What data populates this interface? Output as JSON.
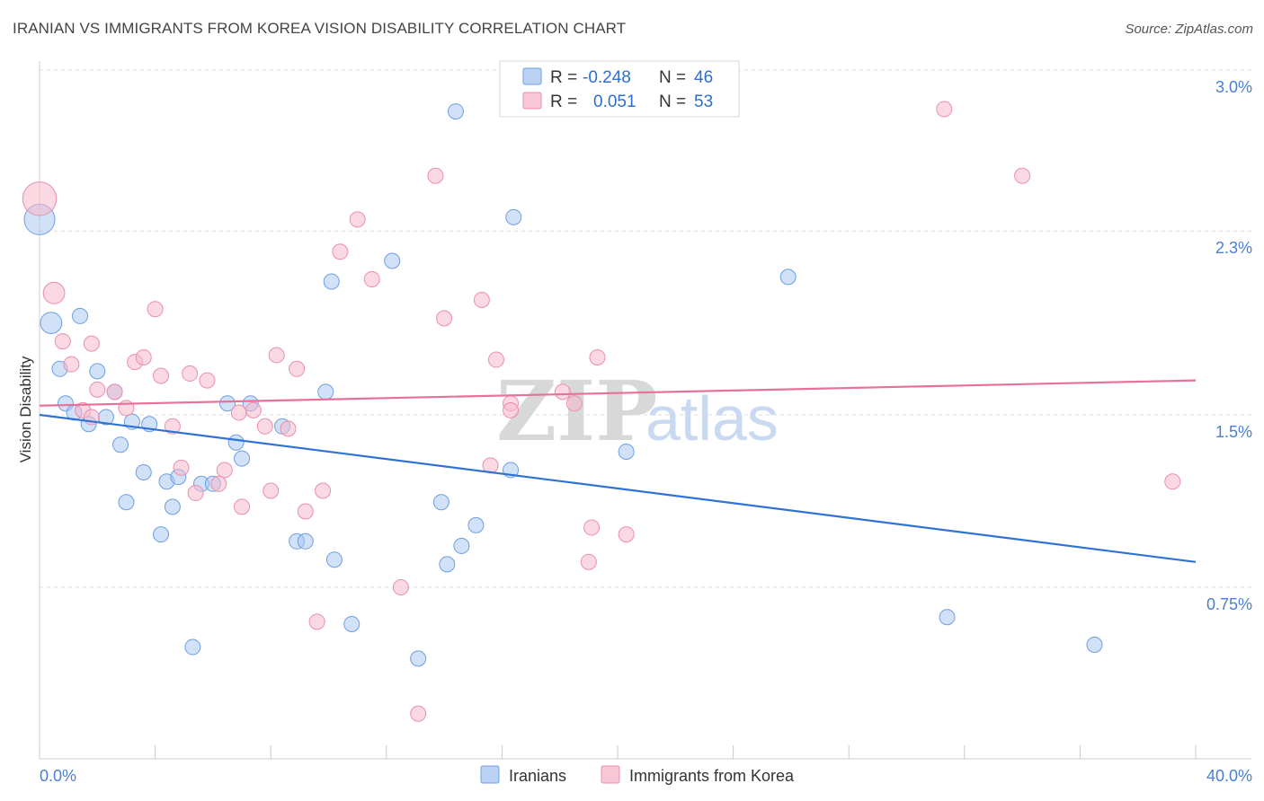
{
  "header": {
    "title": "IRANIAN VS IMMIGRANTS FROM KOREA VISION DISABILITY CORRELATION CHART",
    "source": "Source: ZipAtlas.com"
  },
  "watermark": {
    "zip": "ZIP",
    "atlas": "atlas"
  },
  "legend": {
    "rows": [
      {
        "r_label": "R =",
        "r_value": "-0.248",
        "n_label": "N =",
        "n_value": "46",
        "color": "#a9c8f2"
      },
      {
        "r_label": "R =",
        "r_value": "0.051",
        "n_label": "N =",
        "n_value": "53",
        "color": "#f5b9cc"
      }
    ]
  },
  "bottom_legend": [
    {
      "label": "Iranians",
      "color": "#a9c8f2"
    },
    {
      "label": "Immigrants from Korea",
      "color": "#f5b9cc"
    }
  ],
  "chart_data": {
    "type": "scatter",
    "title": "IRANIAN VS IMMIGRANTS FROM KOREA VISION DISABILITY CORRELATION CHART",
    "xlabel": "",
    "ylabel": "Vision Disability",
    "xlim": [
      0,
      40
    ],
    "ylim": [
      0.0,
      3.1
    ],
    "x_unit": "%",
    "y_unit": "%",
    "x_tick_labels": [
      "0.0%",
      "40.0%"
    ],
    "y_ticks": [
      0.75,
      1.5,
      2.3,
      3.0
    ],
    "y_tick_labels": [
      "0.75%",
      "1.5%",
      "2.3%",
      "3.0%"
    ],
    "grid": true,
    "legend_position": "top-center",
    "series": [
      {
        "name": "Iranians",
        "color": "#a9c8f2",
        "edge": "#6f9fe0",
        "trend_color": "#2f72d6",
        "trend": {
          "x": [
            0,
            40
          ],
          "y": [
            1.5,
            0.86
          ]
        },
        "points": [
          [
            0.0,
            2.35,
            2.0
          ],
          [
            0.4,
            1.9,
            1.4
          ],
          [
            0.7,
            1.7,
            1.0
          ],
          [
            1.4,
            1.93,
            1.0
          ],
          [
            0.9,
            1.55,
            1.0
          ],
          [
            1.2,
            1.51,
            1.0
          ],
          [
            1.7,
            1.46,
            1.0
          ],
          [
            2.0,
            1.69,
            1.0
          ],
          [
            2.6,
            1.6,
            1.0
          ],
          [
            2.3,
            1.49,
            1.0
          ],
          [
            3.2,
            1.47,
            1.0
          ],
          [
            2.8,
            1.37,
            1.0
          ],
          [
            3.8,
            1.46,
            1.0
          ],
          [
            3.6,
            1.25,
            1.0
          ],
          [
            3.0,
            1.12,
            1.0
          ],
          [
            4.4,
            1.21,
            1.0
          ],
          [
            4.8,
            1.23,
            1.0
          ],
          [
            5.6,
            1.2,
            1.0
          ],
          [
            6.0,
            1.2,
            1.0
          ],
          [
            4.6,
            1.1,
            1.0
          ],
          [
            4.2,
            0.98,
            1.0
          ],
          [
            6.5,
            1.55,
            1.0
          ],
          [
            7.3,
            1.55,
            1.0
          ],
          [
            6.8,
            1.38,
            1.0
          ],
          [
            7.0,
            1.31,
            1.0
          ],
          [
            8.4,
            1.45,
            1.0
          ],
          [
            8.9,
            0.95,
            1.0
          ],
          [
            9.2,
            0.95,
            1.0
          ],
          [
            9.9,
            1.6,
            1.0
          ],
          [
            10.1,
            2.08,
            1.0
          ],
          [
            10.2,
            0.87,
            1.0
          ],
          [
            10.8,
            0.59,
            1.0
          ],
          [
            12.2,
            2.17,
            1.0
          ],
          [
            13.1,
            0.44,
            1.0
          ],
          [
            5.3,
            0.49,
            1.0
          ],
          [
            13.9,
            1.12,
            1.0
          ],
          [
            14.1,
            0.85,
            1.0
          ],
          [
            14.6,
            0.93,
            1.0
          ],
          [
            14.4,
            2.82,
            1.0
          ],
          [
            15.1,
            1.02,
            1.0
          ],
          [
            16.4,
            2.36,
            1.0
          ],
          [
            16.3,
            1.26,
            1.0
          ],
          [
            20.3,
            1.34,
            1.0
          ],
          [
            25.9,
            2.1,
            1.0
          ],
          [
            31.4,
            0.62,
            1.0
          ],
          [
            36.5,
            0.5,
            1.0
          ]
        ]
      },
      {
        "name": "Immigrants from Korea",
        "color": "#f5b9cc",
        "edge": "#ea8fae",
        "trend_color": "#e8719b",
        "trend": {
          "x": [
            0,
            40
          ],
          "y": [
            1.54,
            1.65
          ]
        },
        "points": [
          [
            0.0,
            2.44,
            2.2
          ],
          [
            0.5,
            2.03,
            1.4
          ],
          [
            0.8,
            1.82,
            1.0
          ],
          [
            1.1,
            1.72,
            1.0
          ],
          [
            1.5,
            1.52,
            1.0
          ],
          [
            1.8,
            1.49,
            1.0
          ],
          [
            1.8,
            1.81,
            1.0
          ],
          [
            2.0,
            1.61,
            1.0
          ],
          [
            2.6,
            1.6,
            1.0
          ],
          [
            3.0,
            1.53,
            1.0
          ],
          [
            3.3,
            1.73,
            1.0
          ],
          [
            3.6,
            1.75,
            1.0
          ],
          [
            4.0,
            1.96,
            1.0
          ],
          [
            4.2,
            1.67,
            1.0
          ],
          [
            4.6,
            1.45,
            1.0
          ],
          [
            4.9,
            1.27,
            1.0
          ],
          [
            5.2,
            1.68,
            1.0
          ],
          [
            5.4,
            1.16,
            1.0
          ],
          [
            5.8,
            1.65,
            1.0
          ],
          [
            6.2,
            1.2,
            1.0
          ],
          [
            6.4,
            1.26,
            1.0
          ],
          [
            6.9,
            1.51,
            1.0
          ],
          [
            7.0,
            1.1,
            1.0
          ],
          [
            7.4,
            1.52,
            1.0
          ],
          [
            7.8,
            1.45,
            1.0
          ],
          [
            8.0,
            1.17,
            1.0
          ],
          [
            8.2,
            1.76,
            1.0
          ],
          [
            8.6,
            1.44,
            1.0
          ],
          [
            8.9,
            1.7,
            1.0
          ],
          [
            9.2,
            1.08,
            1.0
          ],
          [
            9.6,
            0.6,
            1.0
          ],
          [
            9.8,
            1.17,
            1.0
          ],
          [
            10.4,
            2.21,
            1.0
          ],
          [
            11.0,
            2.35,
            1.0
          ],
          [
            11.5,
            2.09,
            1.0
          ],
          [
            12.5,
            0.75,
            1.0
          ],
          [
            13.1,
            0.2,
            1.0
          ],
          [
            13.7,
            2.54,
            1.0
          ],
          [
            14.0,
            1.92,
            1.0
          ],
          [
            15.3,
            2.0,
            1.0
          ],
          [
            15.6,
            1.28,
            1.0
          ],
          [
            15.8,
            1.74,
            1.0
          ],
          [
            16.3,
            1.55,
            1.0
          ],
          [
            16.3,
            1.52,
            1.0
          ],
          [
            18.1,
            1.6,
            1.0
          ],
          [
            18.5,
            1.55,
            1.0
          ],
          [
            19.0,
            0.86,
            1.0
          ],
          [
            19.1,
            1.01,
            1.0
          ],
          [
            19.3,
            1.75,
            1.0
          ],
          [
            20.3,
            0.98,
            1.0
          ],
          [
            31.3,
            2.83,
            1.0
          ],
          [
            34.0,
            2.54,
            1.0
          ],
          [
            39.2,
            1.21,
            1.0
          ]
        ]
      }
    ]
  }
}
